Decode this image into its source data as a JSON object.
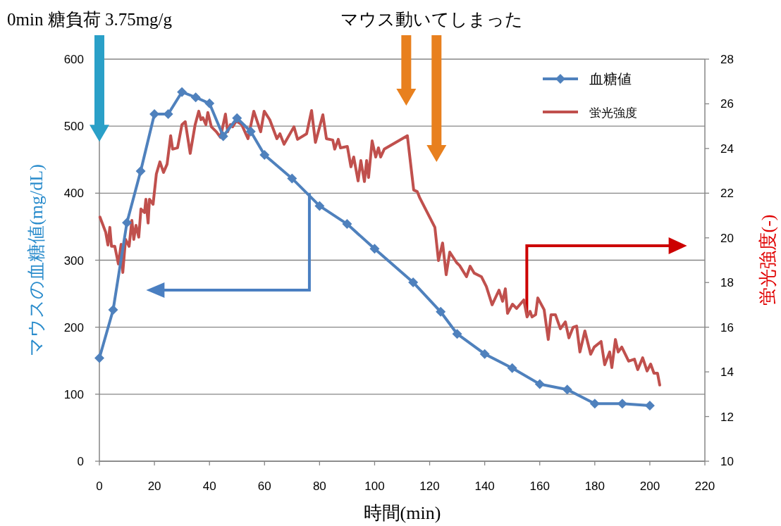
{
  "chart_data": {
    "type": "line",
    "xlabel": "時間(min)",
    "ylabel": "マウスの血糖値(mg/dL)",
    "y2label": "蛍光強度(-)",
    "annotations": [
      "0min 糖負荷 3.75mg/g",
      "マウス動いてしまった"
    ],
    "xlim": [
      0,
      220
    ],
    "xticks": [
      0,
      20,
      40,
      60,
      80,
      100,
      120,
      140,
      160,
      180,
      200,
      220
    ],
    "ylim": [
      0,
      600
    ],
    "yticks": [
      0,
      100,
      200,
      300,
      400,
      500,
      600
    ],
    "y2lim": [
      10,
      28
    ],
    "y2ticks": [
      10,
      12,
      14,
      16,
      18,
      20,
      22,
      24,
      26,
      28
    ],
    "grid": "y",
    "legend": "top right",
    "series": [
      {
        "name": "血糖値",
        "color": "#4f81bd",
        "marker": "diamond",
        "x": [
          0,
          5,
          10,
          15,
          20,
          25,
          30,
          35,
          40,
          45,
          50,
          55,
          60,
          70,
          80,
          90,
          100,
          114,
          124,
          130,
          140,
          150,
          160,
          170,
          180,
          190,
          200
        ],
        "values": [
          154,
          226,
          356,
          433,
          518,
          518,
          551,
          543,
          534,
          485,
          512,
          492,
          457,
          422,
          381,
          354,
          317,
          267,
          223,
          190,
          160,
          139,
          115,
          107,
          86,
          86,
          83
        ]
      },
      {
        "name": "蛍光強度",
        "color": "#c0504d",
        "marker": "none",
        "axis": "y2",
        "x": [
          0.2,
          2.3,
          3.1,
          3.8,
          4.4,
          5.6,
          6.9,
          7.9,
          8.5,
          9.5,
          10.8,
          11.8,
          12.5,
          13.3,
          14.3,
          15.1,
          16.4,
          16.9,
          17.7,
          18.2,
          19.5,
          20.7,
          22.0,
          23.3,
          24.6,
          25.9,
          26.6,
          28.4,
          30.0,
          31.2,
          33.0,
          34.8,
          36.1,
          36.9,
          37.6,
          38.7,
          39.4,
          40.7,
          42.5,
          44.0,
          45.1,
          45.8,
          46.6,
          47.6,
          48.4,
          49.7,
          51.7,
          54.0,
          56.1,
          58.6,
          59.9,
          61.9,
          64.5,
          65.6,
          67.1,
          70.7,
          72.0,
          75.3,
          77.1,
          78.5,
          81.2,
          82.5,
          84.8,
          85.5,
          86.8,
          87.6,
          90.1,
          91.4,
          92.4,
          94.0,
          95.0,
          96.3,
          97.1,
          97.8,
          99.1,
          100.4,
          101.4,
          102.2,
          103.5,
          111.9,
          114.2,
          115.5,
          116.3,
          121.9,
          123.2,
          124.7,
          126.0,
          127.3,
          129.8,
          130.9,
          133.4,
          134.7,
          136.2,
          138.8,
          140.6,
          142.7,
          145.2,
          146.5,
          147.5,
          148.3,
          150.1,
          151.6,
          154.2,
          155.4,
          156.5,
          157.2,
          158.5,
          159.3,
          161.6,
          163.1,
          164.1,
          165.7,
          167.5,
          169.3,
          170.6,
          172.1,
          173.4,
          174.6,
          176.4,
          178.5,
          179.8,
          182.3,
          183.6,
          185.4,
          186.2,
          187.5,
          188.5,
          189.8,
          192.3,
          194.4,
          195.6,
          197.4,
          199.0,
          200.3,
          201.5,
          202.8,
          203.6
        ],
        "values": [
          20.93,
          20.25,
          19.68,
          20.47,
          19.62,
          19.62,
          18.83,
          19.71,
          18.45,
          19.93,
          19.62,
          20.78,
          19.93,
          20.56,
          20.03,
          21.29,
          21.13,
          21.73,
          20.66,
          21.73,
          21.5,
          22.86,
          23.4,
          22.93,
          23.3,
          24.57,
          23.97,
          24.03,
          25.07,
          25.2,
          23.78,
          25.07,
          25.67,
          25.29,
          25.38,
          25.07,
          25.61,
          24.97,
          24.75,
          24.5,
          25.13,
          25.54,
          24.75,
          25.07,
          24.97,
          25.23,
          25.07,
          24.44,
          25.67,
          24.75,
          25.67,
          25.29,
          24.44,
          24.66,
          24.19,
          24.97,
          24.41,
          24.66,
          25.7,
          24.27,
          25.51,
          24.44,
          24.38,
          23.97,
          24.41,
          24.03,
          24.09,
          23.18,
          23.62,
          22.55,
          23.46,
          22.52,
          23.46,
          22.7,
          24.34,
          23.62,
          24.03,
          23.62,
          23.97,
          24.57,
          22.14,
          22.07,
          21.82,
          20.47,
          18.98,
          19.77,
          18.35,
          19.36,
          18.89,
          18.76,
          18.26,
          18.73,
          18.42,
          18.26,
          17.82,
          17.0,
          17.66,
          17.16,
          17.72,
          16.62,
          17.03,
          16.84,
          17.22,
          16.46,
          16.71,
          16.46,
          16.56,
          17.31,
          16.78,
          15.45,
          16.56,
          16.56,
          15.93,
          16.24,
          15.52,
          15.99,
          16.05,
          14.89,
          15.83,
          14.79,
          15.11,
          15.36,
          14.32,
          14.89,
          14.19,
          15.45,
          14.89,
          15.11,
          14.48,
          14.57,
          14.1,
          14.63,
          14.04,
          14.35,
          13.94,
          13.94,
          13.41
        ]
      }
    ]
  }
}
